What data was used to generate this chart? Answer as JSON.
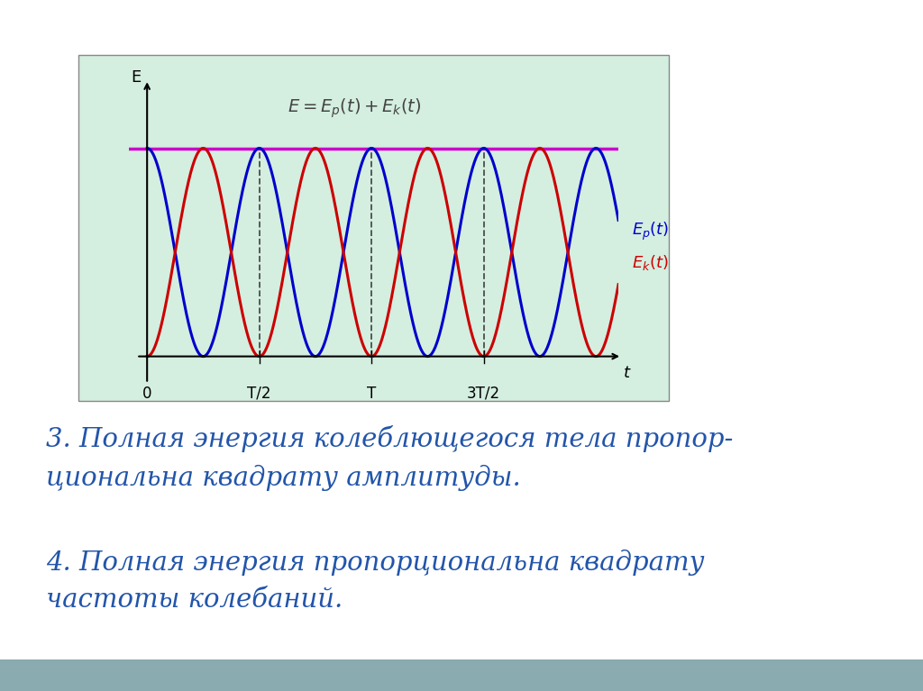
{
  "bg_color": "#ffffff",
  "plot_bg_color": "#d4eee0",
  "fig_width": 10.24,
  "fig_height": 7.67,
  "text1": "3. Полная энергия колеблющегося тела пропор-\nциональна квадрату амплитуды.",
  "text2": "4. Полная энергия пропорциональна квадрату\nчастоты колебаний.",
  "text_color": "#2255aa",
  "line_color_red": "#cc0000",
  "line_color_blue": "#0000cc",
  "line_color_magenta": "#cc00cc",
  "axis_label_E": "E",
  "axis_label_t": "t",
  "tick_labels": [
    "0",
    "T/2",
    "T",
    "3T/2",
    "t"
  ],
  "dashed_line_color": "#333333",
  "border_color": "#888888",
  "bottom_bar_color": "#8aabb0"
}
